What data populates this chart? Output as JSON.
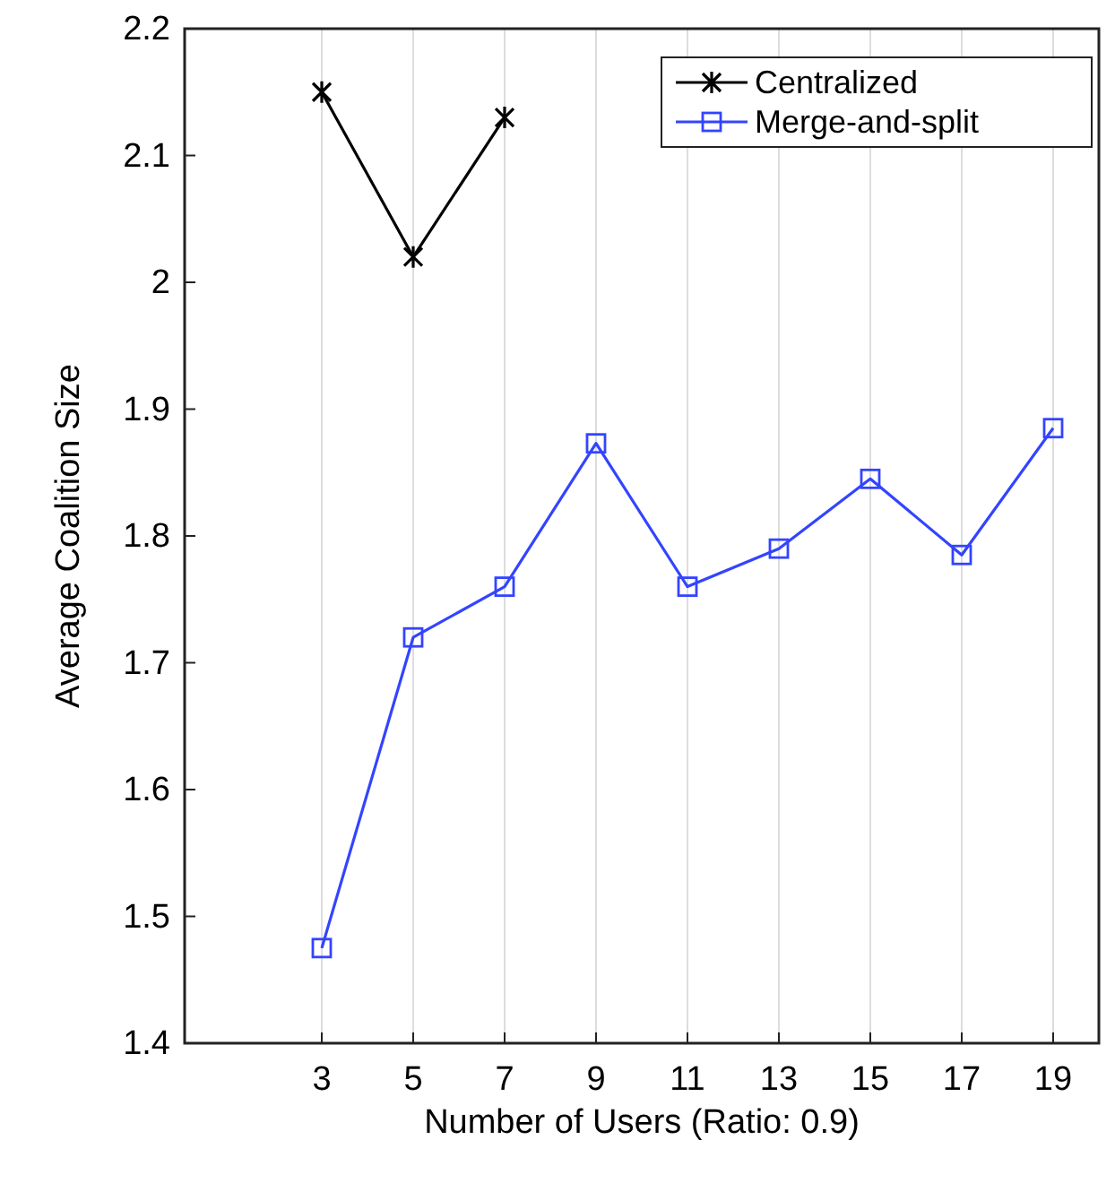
{
  "chart_data": {
    "type": "line",
    "xlabel": "Number of Users (Ratio: 0.9)",
    "ylabel": "Average Coalition Size",
    "xlim": [
      0,
      20
    ],
    "xticks": [
      3,
      5,
      7,
      9,
      11,
      13,
      15,
      17,
      19
    ],
    "ylim": [
      1.4,
      2.2
    ],
    "yticks": [
      1.4,
      1.5,
      1.6,
      1.7,
      1.8,
      1.9,
      2,
      2.1,
      2.2
    ],
    "grid": "x",
    "legend": "top right",
    "series": [
      {
        "name": "Centralized",
        "color": "#000000",
        "marker": "cross",
        "x": [
          3,
          5,
          7
        ],
        "values": [
          2.15,
          2.02,
          2.13
        ]
      },
      {
        "name": "Merge-and-split",
        "color": "#3344ff",
        "marker": "square",
        "x": [
          3,
          5,
          7,
          9,
          11,
          13,
          15,
          17,
          19
        ],
        "values": [
          1.475,
          1.72,
          1.76,
          1.873,
          1.76,
          1.79,
          1.845,
          1.785,
          1.885
        ]
      }
    ]
  }
}
